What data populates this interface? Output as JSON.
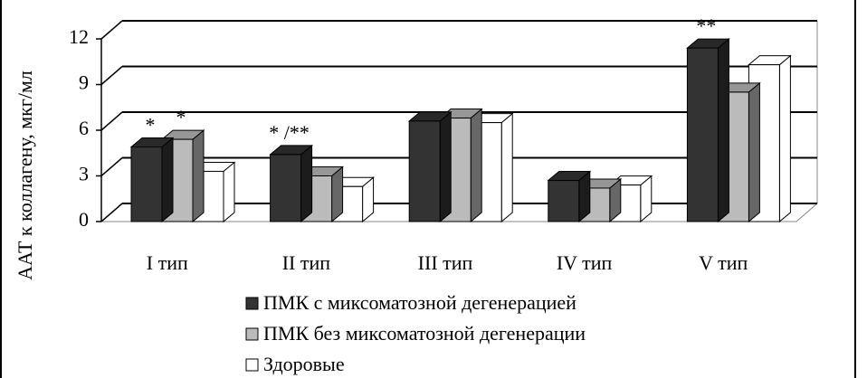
{
  "chart_data": {
    "type": "bar3d",
    "y_label": "ААТ к коллагену, мкг/мл",
    "categories": [
      "I тип",
      "II тип",
      "III тип",
      "IV тип",
      "V тип"
    ],
    "series": [
      {
        "name": "ПМК с миксоматозной дегенерацией",
        "color": "#333333",
        "values": [
          4.9,
          4.4,
          6.6,
          2.7,
          11.4
        ]
      },
      {
        "name": "ПМК без миксоматозной дегенерации",
        "color": "#bbbbbb",
        "values": [
          5.4,
          3.0,
          6.8,
          2.2,
          8.5
        ]
      },
      {
        "name": "Здоровые",
        "color": "#ffffff",
        "values": [
          3.3,
          2.3,
          6.5,
          2.4,
          10.3
        ]
      }
    ],
    "annotations": [
      {
        "text": "*",
        "category": "I тип",
        "series": "ПМК с миксоматозной дегенерацией"
      },
      {
        "text": "*",
        "category": "I тип",
        "series": "ПМК без миксоматозной дегенерации"
      },
      {
        "text": "* /**",
        "category": "II тип",
        "series": "ПМК с миксоматозной дегенерацией"
      },
      {
        "text": "**",
        "category": "V тип",
        "series": "ПМК с миксоматозной дегенерацией"
      }
    ],
    "ylim": [
      0,
      12
    ],
    "yticks": [
      0,
      3,
      6,
      9,
      12
    ],
    "grid": true
  }
}
